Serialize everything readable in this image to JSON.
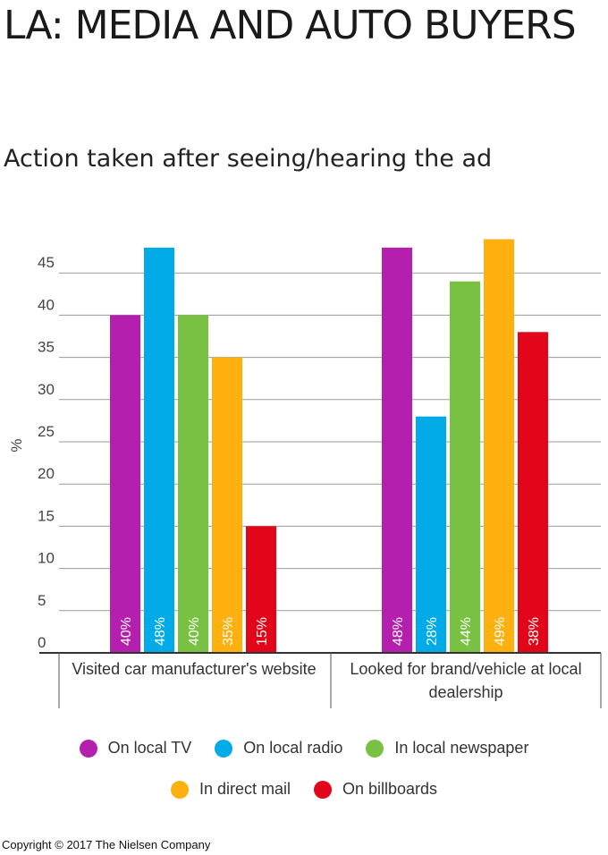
{
  "title": "LA: MEDIA AND AUTO BUYERS",
  "subtitle": "Action taken after seeing/hearing the ad",
  "copyright": "Copyright © 2017 The Nielsen Company",
  "chart_data": {
    "type": "bar",
    "ylabel": "%",
    "xlabel": "",
    "ylim": [
      0,
      50
    ],
    "yticks": [
      0,
      5,
      10,
      15,
      20,
      25,
      30,
      35,
      40,
      45
    ],
    "grid": true,
    "categories": [
      "Visited car manufacturer's website",
      "Looked for brand/vehicle at local dealership"
    ],
    "category_lines": [
      [
        "Visited car manufacturer's website"
      ],
      [
        "Looked for brand/vehicle at local",
        "dealership"
      ]
    ],
    "series": [
      {
        "name": "On local TV",
        "color": "#b51fae",
        "values": [
          40,
          48
        ],
        "labels": [
          "40%",
          "48%"
        ]
      },
      {
        "name": "On local radio",
        "color": "#00abe8",
        "values": [
          48,
          28
        ],
        "labels": [
          "48%",
          "28%"
        ]
      },
      {
        "name": "In local newspaper",
        "color": "#79c143",
        "values": [
          40,
          44
        ],
        "labels": [
          "40%",
          "44%"
        ]
      },
      {
        "name": "In direct mail",
        "color": "#fdb00e",
        "values": [
          35,
          49
        ],
        "labels": [
          "35%",
          "49%"
        ]
      },
      {
        "name": "On billboards",
        "color": "#e2061b",
        "values": [
          15,
          38
        ],
        "labels": [
          "15%",
          "38%"
        ]
      }
    ],
    "legend_rows": [
      [
        0,
        1,
        2
      ],
      [
        3,
        4
      ]
    ],
    "legend_position": "bottom"
  }
}
